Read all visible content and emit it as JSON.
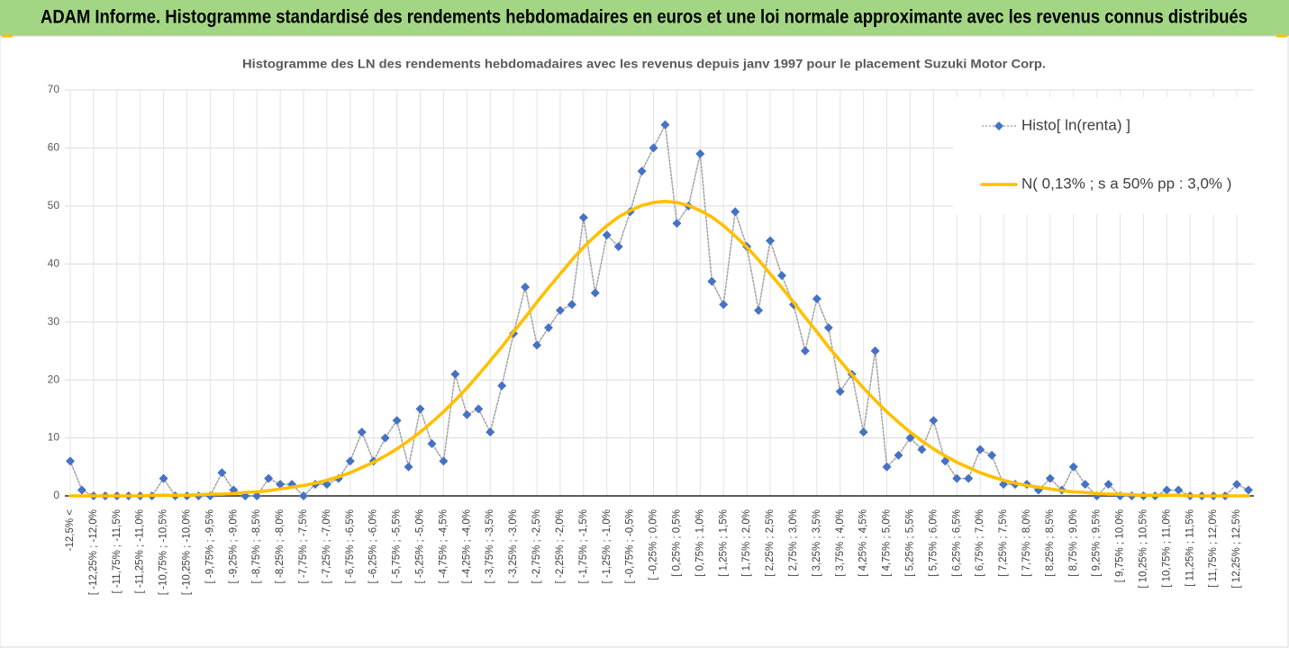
{
  "chart_data": {
    "type": "line",
    "title": "ADAM Informe. Histogramme standardisé des rendements hebdomadaires en euros et une loi normale approximante avec les revenus connus distribués",
    "subtitle": "Histogramme des LN des rendements hebdomadaires avec les revenus depuis janv 1997 pour le placement Suzuki Motor Corp.",
    "categories": [
      "-12,5% <",
      null,
      "[ -12,25% ; -12,0%",
      null,
      "[ -11,75% ; -11,5%",
      null,
      "[ -11,25% ; -11,0%",
      null,
      "[ -10,75% ; -10,5%",
      null,
      "[ -10,25% ; -10,0%",
      null,
      "[ -9,75% ; -9,5%",
      null,
      "[ -9,25% ; -9,0%",
      null,
      "[ -8,75% ; -8,5%",
      null,
      "[ -8,25% ; -8,0%",
      null,
      "[ -7,75% ; -7,5%",
      null,
      "[ -7,25% ; -7,0%",
      null,
      "[ -6,75% ; -6,5%",
      null,
      "[ -6,25% ; -6,0%",
      null,
      "[ -5,75% ; -5,5%",
      null,
      "[ -5,25% ; -5,0%",
      null,
      "[ -4,75% ; -4,5%",
      null,
      "[ -4,25% ; -4,0%",
      null,
      "[ -3,75% ; -3,5%",
      null,
      "[ -3,25% ; -3,0%",
      null,
      "[ -2,75% ; -2,5%",
      null,
      "[ -2,25% ; -2,0%",
      null,
      "[ -1,75% ; -1,5%",
      null,
      "[ -1,25% ; -1,0%",
      null,
      "[ -0,75% ; -0,5%",
      null,
      "[ -0,25% ; 0,0%",
      null,
      "[ 0,25% ; 0,5%",
      null,
      "[ 0,75% ; 1,0%",
      null,
      "[ 1,25% ; 1,5%",
      null,
      "[ 1,75% ; 2,0%",
      null,
      "[ 2,25% ; 2,5%",
      null,
      "[ 2,75% ; 3,0%",
      null,
      "[ 3,25% ; 3,5%",
      null,
      "[ 3,75% ; 4,0%",
      null,
      "[ 4,25% ; 4,5%",
      null,
      "[ 4,75% ; 5,0%",
      null,
      "[ 5,25% ; 5,5%",
      null,
      "[ 5,75% ; 6,0%",
      null,
      "[ 6,25% ; 6,5%",
      null,
      "[ 6,75% ; 7,0%",
      null,
      "[ 7,25% ; 7,5%",
      null,
      "[ 7,75% ; 8,0%",
      null,
      "[ 8,25% ; 8,5%",
      null,
      "[ 8,75% ; 9,0%",
      null,
      "[ 9,25% ; 9,5%",
      null,
      "[ 9,75% ; 10,0%",
      null,
      "[ 10,25% ; 10,5%",
      null,
      "[ 10,75% ; 11,0%",
      null,
      "[ 11,25% ; 11,5%",
      null,
      "[ 11,75% ; 12,0%",
      null,
      "[ 12,25% ; 12,5%",
      null
    ],
    "series": [
      {
        "name": "Histo[ ln(renta) ]",
        "color": "#4472c4",
        "line_color": "#a6a6a6",
        "marker": "diamond",
        "line_style": "dotted",
        "values": [
          6,
          1,
          0,
          0,
          0,
          0,
          0,
          0,
          3,
          0,
          0,
          0,
          0,
          4,
          1,
          0,
          0,
          3,
          2,
          2,
          0,
          2,
          2,
          3,
          6,
          11,
          6,
          10,
          13,
          5,
          15,
          9,
          6,
          21,
          14,
          15,
          11,
          19,
          28,
          36,
          26,
          29,
          32,
          33,
          48,
          35,
          45,
          43,
          49,
          56,
          60,
          64,
          47,
          50,
          59,
          37,
          33,
          49,
          43,
          32,
          44,
          38,
          33,
          25,
          34,
          29,
          18,
          21,
          11,
          25,
          5,
          7,
          10,
          8,
          13,
          6,
          3,
          3,
          8,
          7,
          2,
          2,
          2,
          1,
          3,
          1,
          5,
          2,
          0,
          2,
          0,
          0,
          0,
          0,
          1,
          1,
          0,
          0,
          0,
          0,
          2,
          1
        ]
      },
      {
        "name": "N( 0,13% ; s a 50% pp : 3,0% )",
        "color": "#ffc000",
        "marker": "none",
        "line_style": "solid",
        "values": [
          0.0,
          0.0,
          0.0,
          0.0,
          0.0,
          0.0,
          0.0,
          0.1,
          0.1,
          0.1,
          0.1,
          0.2,
          0.3,
          0.3,
          0.4,
          0.6,
          0.7,
          0.9,
          1.2,
          1.5,
          1.8,
          2.2,
          2.7,
          3.3,
          4.0,
          4.9,
          5.8,
          6.9,
          8.1,
          9.5,
          11.0,
          12.7,
          14.5,
          16.5,
          18.6,
          20.9,
          23.3,
          25.7,
          28.3,
          30.8,
          33.4,
          35.9,
          38.3,
          40.7,
          42.9,
          44.8,
          46.6,
          48.1,
          49.2,
          50.1,
          50.6,
          50.8,
          50.6,
          50.1,
          49.2,
          48.1,
          46.6,
          44.8,
          42.9,
          40.7,
          38.3,
          35.9,
          33.4,
          30.8,
          28.3,
          25.7,
          23.3,
          20.9,
          18.6,
          16.5,
          14.5,
          12.7,
          11.0,
          9.5,
          8.1,
          6.9,
          5.8,
          4.9,
          4.0,
          3.3,
          2.7,
          2.2,
          1.8,
          1.5,
          1.2,
          0.9,
          0.7,
          0.6,
          0.4,
          0.3,
          0.3,
          0.2,
          0.1,
          0.1,
          0.1,
          0.1,
          0.0,
          0.0,
          0.0,
          0.0,
          0.0,
          0.0
        ]
      }
    ],
    "ylim": [
      0,
      70
    ],
    "yticks": [
      0,
      10,
      20,
      30,
      40,
      50,
      60,
      70
    ],
    "grid": true,
    "legend": "upper right"
  }
}
